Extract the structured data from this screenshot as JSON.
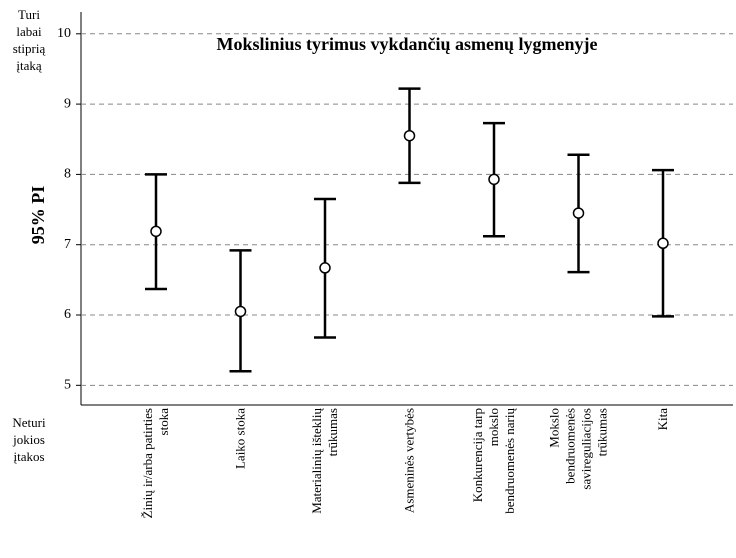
{
  "chart_data": {
    "type": "errorbar",
    "title": "Mokslinius tyrimus vykdančių asmenų lygmenyje",
    "ylabel": "95% PI",
    "top_note": "Turi\nlabai\nstiprią\nįtaką",
    "bottom_note": "Neturi\njokios\nįtakos",
    "categories": [
      "Žinių ir/arba patirties\nstoka",
      "Laiko stoka",
      "Materialinių išteklių\ntrūkumas",
      "Asmeninės vertybės",
      "Konkurencija tarp\nmokslo\nbendruomenės narių",
      "Mokslo\nbendruomenės\nsavireguliacijos\ntrūkumas",
      "Kita"
    ],
    "values": [
      7.19,
      6.05,
      6.67,
      8.55,
      7.93,
      7.45,
      7.02
    ],
    "lower": [
      6.37,
      5.2,
      5.68,
      7.88,
      7.12,
      6.61,
      5.98
    ],
    "upper": [
      8.0,
      6.92,
      7.65,
      9.22,
      8.73,
      8.28,
      8.06
    ],
    "color": "#000000",
    "ylim": [
      4.72,
      10.31
    ],
    "yticks": [
      5,
      6,
      7,
      8,
      9,
      10
    ],
    "grid": true
  }
}
